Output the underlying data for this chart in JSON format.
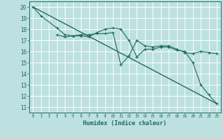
{
  "xlabel": "Humidex (Indice chaleur)",
  "background_color": "#bde0e0",
  "grid_color": "#ffffff",
  "line_color": "#1e6b5e",
  "xlim": [
    -0.5,
    23.5
  ],
  "ylim": [
    10.5,
    20.5
  ],
  "xticks": [
    0,
    1,
    2,
    3,
    4,
    5,
    6,
    7,
    8,
    9,
    10,
    11,
    12,
    13,
    14,
    15,
    16,
    17,
    18,
    19,
    20,
    21,
    22,
    23
  ],
  "yticks": [
    11,
    12,
    13,
    14,
    15,
    16,
    17,
    18,
    19,
    20
  ],
  "series1_x": [
    0,
    1,
    3,
    4,
    5,
    6,
    7,
    8,
    9,
    10,
    11,
    12,
    13,
    14,
    15,
    16,
    17,
    18,
    19,
    20,
    21,
    22,
    23
  ],
  "series1_y": [
    20.0,
    19.2,
    18.1,
    17.5,
    17.4,
    17.4,
    17.3,
    17.7,
    18.0,
    18.1,
    18.0,
    17.0,
    15.5,
    16.2,
    16.2,
    16.4,
    16.4,
    16.1,
    16.0,
    15.0,
    13.0,
    12.1,
    11.3
  ],
  "series2_x": [
    3,
    4,
    5,
    6,
    7,
    8,
    9,
    10,
    11,
    12,
    13,
    14,
    15,
    16,
    17,
    18,
    19,
    20,
    21,
    22,
    23
  ],
  "series2_y": [
    17.5,
    17.3,
    17.4,
    17.5,
    17.5,
    17.6,
    17.6,
    17.7,
    14.8,
    15.6,
    17.0,
    16.5,
    16.4,
    16.5,
    16.5,
    16.2,
    15.9,
    15.8,
    16.0,
    15.9,
    15.8
  ],
  "series3_x": [
    0,
    23
  ],
  "series3_y": [
    20.0,
    11.3
  ]
}
